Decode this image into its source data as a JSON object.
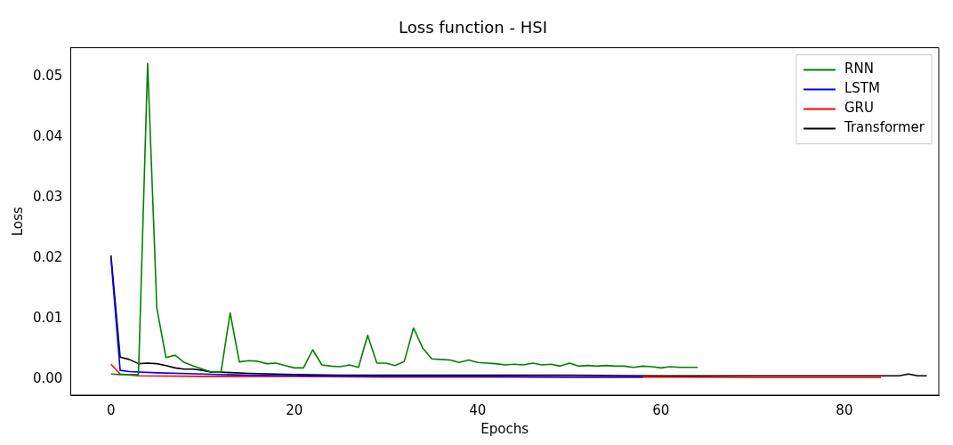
{
  "chart_data": {
    "type": "line",
    "title": "Loss function - HSI",
    "xlabel": "Epochs",
    "ylabel": "Loss",
    "legend": "top right",
    "grid": false,
    "marker": "none",
    "line_style": "solid",
    "xlim": [
      -4.4,
      90.3
    ],
    "xticks": [
      0,
      20,
      40,
      60,
      80
    ],
    "ylim": [
      -0.0026,
      0.0548
    ],
    "yticks": [
      {
        "value": 0,
        "label": "0.00"
      },
      {
        "value": 0.01,
        "label": "0.01"
      },
      {
        "value": 0.02,
        "label": "0.02"
      },
      {
        "value": 0.03,
        "label": "0.03"
      },
      {
        "value": 0.04,
        "label": "0.04"
      },
      {
        "value": 0.05,
        "label": "0.05"
      }
    ],
    "series": [
      {
        "name": "RNN",
        "color": "#008000",
        "x": [
          0,
          1,
          2,
          3,
          4,
          5,
          6,
          7,
          8,
          9,
          10,
          11,
          12,
          13,
          14,
          15,
          16,
          17,
          18,
          19,
          20,
          21,
          22,
          23,
          24,
          25,
          26,
          27,
          28,
          29,
          30,
          31,
          32,
          33,
          34,
          35,
          36,
          37,
          38,
          39,
          40,
          41,
          42,
          43,
          44,
          45,
          46,
          47,
          48,
          49,
          50,
          51,
          52,
          53,
          54,
          55,
          56,
          57,
          58,
          59,
          60,
          61,
          62,
          63,
          64
        ],
        "values": [
          0.0009,
          0.0008,
          0.0008,
          0.0008,
          0.0522,
          0.0118,
          0.0036,
          0.004,
          0.0028,
          0.0022,
          0.0017,
          0.0012,
          0.0012,
          0.011,
          0.0029,
          0.0031,
          0.003,
          0.0026,
          0.0027,
          0.0023,
          0.0019,
          0.0019,
          0.0049,
          0.0024,
          0.0022,
          0.0021,
          0.0024,
          0.002,
          0.0073,
          0.0027,
          0.0027,
          0.0023,
          0.003,
          0.0085,
          0.0052,
          0.0034,
          0.0033,
          0.0032,
          0.0028,
          0.0032,
          0.0028,
          0.0027,
          0.0026,
          0.0024,
          0.0025,
          0.0024,
          0.0027,
          0.0024,
          0.0025,
          0.0022,
          0.0027,
          0.0022,
          0.0023,
          0.0022,
          0.0023,
          0.0022,
          0.0022,
          0.002,
          0.0022,
          0.0021,
          0.0019,
          0.0021,
          0.002,
          0.002,
          0.002
        ]
      },
      {
        "name": "LSTM",
        "color": "#0000ff",
        "x": [
          0,
          1,
          2,
          5,
          10,
          15,
          20,
          30,
          40,
          50,
          58
        ],
        "values": [
          0.02,
          0.0015,
          0.0013,
          0.0011,
          0.0009,
          0.0007,
          0.0006,
          0.0005,
          0.0005,
          0.0004,
          0.0004
        ]
      },
      {
        "name": "GRU",
        "color": "#ff0000",
        "x": [
          0,
          1,
          3,
          10,
          20,
          30,
          40,
          50,
          60,
          70,
          84
        ],
        "values": [
          0.0025,
          0.0009,
          0.0006,
          0.0005,
          0.0005,
          0.0004,
          0.0004,
          0.0004,
          0.0004,
          0.0003,
          0.0003
        ]
      },
      {
        "name": "Transformer",
        "color": "#000000",
        "x": [
          0,
          1,
          2,
          3,
          4,
          5,
          6,
          7,
          8,
          9,
          10,
          11,
          12,
          15,
          20,
          25,
          30,
          40,
          50,
          60,
          70,
          80,
          86,
          87,
          88,
          89
        ],
        "values": [
          0.0205,
          0.0037,
          0.0033,
          0.0026,
          0.0027,
          0.0026,
          0.0023,
          0.0019,
          0.0017,
          0.0017,
          0.0015,
          0.0012,
          0.0012,
          0.001,
          0.0008,
          0.0007,
          0.0007,
          0.0007,
          0.0007,
          0.0006,
          0.0006,
          0.0006,
          0.0006,
          0.0009,
          0.0006,
          0.0006
        ]
      }
    ]
  }
}
